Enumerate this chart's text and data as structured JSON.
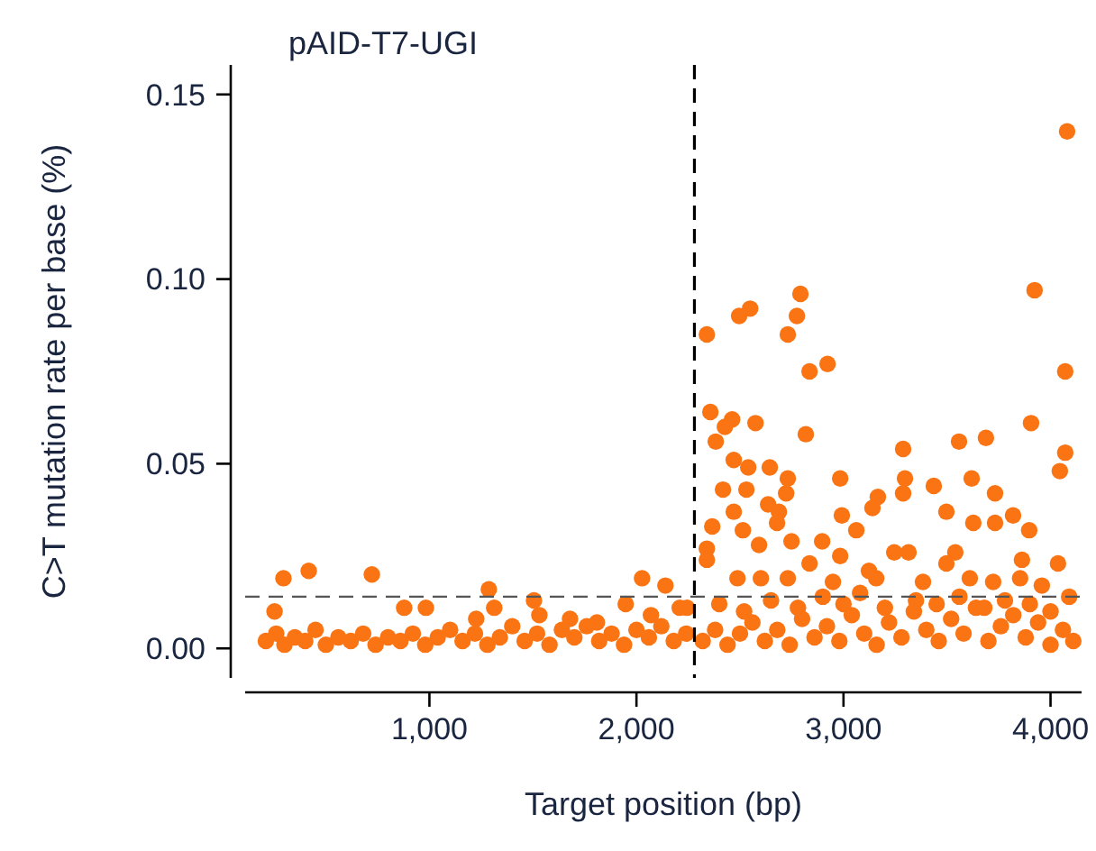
{
  "chart_data": {
    "type": "scatter",
    "title": "pAID-T7-UGI",
    "xlabel": "Target position (bp)",
    "ylabel": "C>T mutation rate per base (%)",
    "color": "#fa7414",
    "marker": "circle",
    "grid": false,
    "xlim": [
      110,
      4150
    ],
    "ylim": [
      -0.008,
      0.158
    ],
    "xticks": [
      {
        "value": 1000,
        "label": "1,000"
      },
      {
        "value": 2000,
        "label": "2,000"
      },
      {
        "value": 3000,
        "label": "3,000"
      },
      {
        "value": 4000,
        "label": "4,000"
      }
    ],
    "yticks": [
      {
        "value": 0,
        "label": "0.00"
      },
      {
        "value": 0.05,
        "label": "0.05"
      },
      {
        "value": 0.1,
        "label": "0.10"
      },
      {
        "value": 0.15,
        "label": "0.15"
      }
    ],
    "ref_lines": [
      {
        "axis": "x",
        "value": 2280,
        "color": "#000000",
        "line_style": "dashed"
      },
      {
        "axis": "y",
        "value": 0.014,
        "color": "#555555",
        "line_style": "dashed"
      }
    ],
    "x": [
      295,
      417,
      722,
      252,
      878,
      983,
      1287,
      1313,
      1226,
      1505,
      1531,
      1679,
      2027,
      2140,
      1948,
      2070,
      2209,
      1809,
      2244,
      2792,
      3923,
      2549,
      2496,
      2775,
      2340,
      2731,
      2836,
      2923,
      4071,
      2357,
      2462,
      2427,
      2575,
      2383,
      2818,
      3906,
      3558,
      3688,
      3288,
      4071,
      4045,
      2470,
      2540,
      2644,
      2731,
      2984,
      3297,
      3619,
      2418,
      2531,
      2723,
      3288,
      3436,
      3732,
      3166,
      2636,
      3140,
      2470,
      2688,
      2992,
      3497,
      3819,
      2366,
      2514,
      2679,
      3062,
      3627,
      3732,
      3897,
      2340,
      2592,
      2749,
      2897,
      3245,
      3314,
      3540,
      2340,
      2984,
      3862,
      4036,
      3497,
      2836,
      3123,
      2488,
      2601,
      2731,
      2949,
      3158,
      3384,
      3610,
      3723,
      3853,
      3958,
      4080,
      210,
      260,
      300,
      350,
      400,
      450,
      500,
      560,
      620,
      680,
      740,
      800,
      860,
      920,
      980,
      1040,
      1100,
      1160,
      1220,
      1280,
      1340,
      1400,
      1460,
      1520,
      1580,
      1640,
      1700,
      1760,
      1820,
      1880,
      1940,
      2000,
      2060,
      2120,
      2180,
      2240,
      2320,
      2380,
      2440,
      2500,
      2560,
      2620,
      2680,
      2740,
      2800,
      2860,
      2920,
      2980,
      3040,
      3100,
      3160,
      3220,
      3280,
      3340,
      3400,
      3460,
      3520,
      3580,
      3640,
      3700,
      3760,
      3820,
      3880,
      3940,
      4000,
      4060,
      4110,
      2400,
      2520,
      2650,
      2780,
      2900,
      3000,
      3080,
      3200,
      3350,
      3450,
      3560,
      3680,
      3780,
      3900,
      4000,
      4090
    ],
    "values": [
      0.019,
      0.021,
      0.02,
      0.01,
      0.011,
      0.011,
      0.016,
      0.011,
      0.008,
      0.013,
      0.009,
      0.008,
      0.019,
      0.017,
      0.012,
      0.009,
      0.011,
      0.007,
      0.011,
      0.096,
      0.097,
      0.092,
      0.09,
      0.09,
      0.085,
      0.085,
      0.075,
      0.077,
      0.075,
      0.064,
      0.062,
      0.06,
      0.061,
      0.056,
      0.058,
      0.061,
      0.056,
      0.057,
      0.054,
      0.053,
      0.048,
      0.051,
      0.049,
      0.049,
      0.046,
      0.046,
      0.046,
      0.046,
      0.043,
      0.043,
      0.042,
      0.042,
      0.044,
      0.042,
      0.041,
      0.039,
      0.038,
      0.037,
      0.037,
      0.036,
      0.037,
      0.036,
      0.033,
      0.032,
      0.034,
      0.032,
      0.034,
      0.034,
      0.032,
      0.027,
      0.028,
      0.029,
      0.029,
      0.026,
      0.026,
      0.026,
      0.024,
      0.025,
      0.024,
      0.023,
      0.023,
      0.023,
      0.021,
      0.019,
      0.019,
      0.019,
      0.018,
      0.019,
      0.018,
      0.019,
      0.018,
      0.019,
      0.017,
      0.14,
      0.002,
      0.004,
      0.001,
      0.003,
      0.002,
      0.005,
      0.001,
      0.003,
      0.002,
      0.004,
      0.001,
      0.003,
      0.002,
      0.004,
      0.001,
      0.003,
      0.005,
      0.002,
      0.004,
      0.001,
      0.003,
      0.006,
      0.002,
      0.004,
      0.001,
      0.005,
      0.003,
      0.006,
      0.002,
      0.004,
      0.001,
      0.005,
      0.003,
      0.006,
      0.002,
      0.004,
      0.002,
      0.005,
      0.001,
      0.004,
      0.007,
      0.002,
      0.005,
      0.001,
      0.008,
      0.003,
      0.006,
      0.002,
      0.009,
      0.004,
      0.001,
      0.007,
      0.003,
      0.01,
      0.005,
      0.002,
      0.008,
      0.004,
      0.011,
      0.002,
      0.006,
      0.009,
      0.003,
      0.007,
      0.001,
      0.005,
      0.002,
      0.012,
      0.01,
      0.013,
      0.011,
      0.014,
      0.012,
      0.015,
      0.011,
      0.013,
      0.012,
      0.014,
      0.011,
      0.013,
      0.012,
      0.01,
      0.014
    ]
  }
}
